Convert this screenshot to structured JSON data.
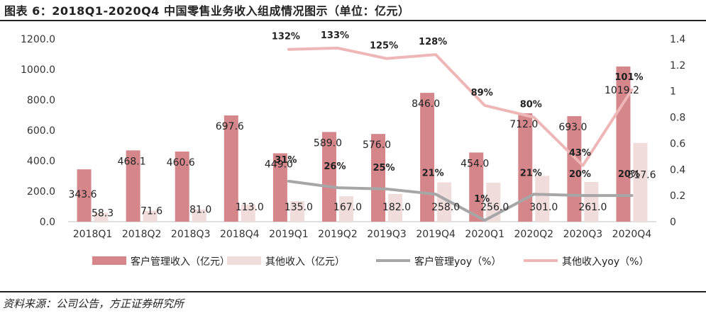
{
  "title": "图表 6：2018Q1-2020Q4 中国零售业务收入组成情况图示（单位：亿元）",
  "source": "资料来源：公司公告，方正证券研究所",
  "chart_data": {
    "type": "bar",
    "categories": [
      "2018Q1",
      "2018Q2",
      "2018Q3",
      "2018Q4",
      "2019Q1",
      "2019Q2",
      "2019Q3",
      "2019Q4",
      "2020Q1",
      "2020Q2",
      "2020Q3",
      "2020Q4"
    ],
    "series": [
      {
        "name": "客户管理收入（亿元）",
        "kind": "bar",
        "axis": "left",
        "color": "#d4868a",
        "values": [
          343.6,
          468.1,
          460.6,
          697.6,
          449.0,
          589.0,
          576.0,
          846.0,
          454.0,
          712.0,
          693.0,
          1019.2
        ],
        "labels": [
          "343.6",
          "468.1",
          "460.6",
          "697.6",
          "449.0",
          "589.0",
          "576.0",
          "846.0",
          "454.0",
          "712.0",
          "693.0",
          "1019.2"
        ]
      },
      {
        "name": "其他收入（亿元）",
        "kind": "bar",
        "axis": "left",
        "color": "#f1dcdc",
        "values": [
          58.3,
          71.6,
          81.0,
          113.0,
          135.0,
          167.0,
          182.0,
          258.0,
          256.0,
          301.0,
          261.0,
          517.6
        ],
        "labels": [
          "58.3",
          "71.6",
          "81.0",
          "113.0",
          "135.0",
          "167.0",
          "182.0",
          "258.0",
          "256.0",
          "301.0",
          "261.0",
          "517.6"
        ]
      },
      {
        "name": "客户管理yoy（%）",
        "kind": "line",
        "axis": "right",
        "color": "#a6a6a6",
        "values": [
          null,
          null,
          null,
          null,
          0.31,
          0.26,
          0.25,
          0.21,
          0.01,
          0.21,
          0.2,
          0.2
        ],
        "labels": [
          "",
          "",
          "",
          "",
          "31%",
          "26%",
          "25%",
          "21%",
          "1%",
          "21%",
          "20%",
          "20%"
        ]
      },
      {
        "name": "其他收入yoy（%）",
        "kind": "line",
        "axis": "right",
        "color": "#eeb6b6",
        "values": [
          null,
          null,
          null,
          null,
          1.32,
          1.33,
          1.25,
          1.28,
          0.89,
          0.8,
          0.43,
          1.01
        ],
        "labels": [
          "",
          "",
          "",
          "",
          "132%",
          "133%",
          "125%",
          "128%",
          "89%",
          "80%",
          "43%",
          "101%"
        ]
      }
    ],
    "y_left": {
      "min": 0,
      "max": 1200,
      "ticks": [
        "0.0",
        "200.0",
        "400.0",
        "600.0",
        "800.0",
        "1000.0",
        "1200.0"
      ]
    },
    "y_right": {
      "min": 0,
      "max": 1.4,
      "ticks": [
        "0",
        "0.2",
        "0.4",
        "0.6",
        "0.8",
        "1",
        "1.2",
        "1.4"
      ]
    },
    "legend_position": "bottom",
    "grid": false
  }
}
